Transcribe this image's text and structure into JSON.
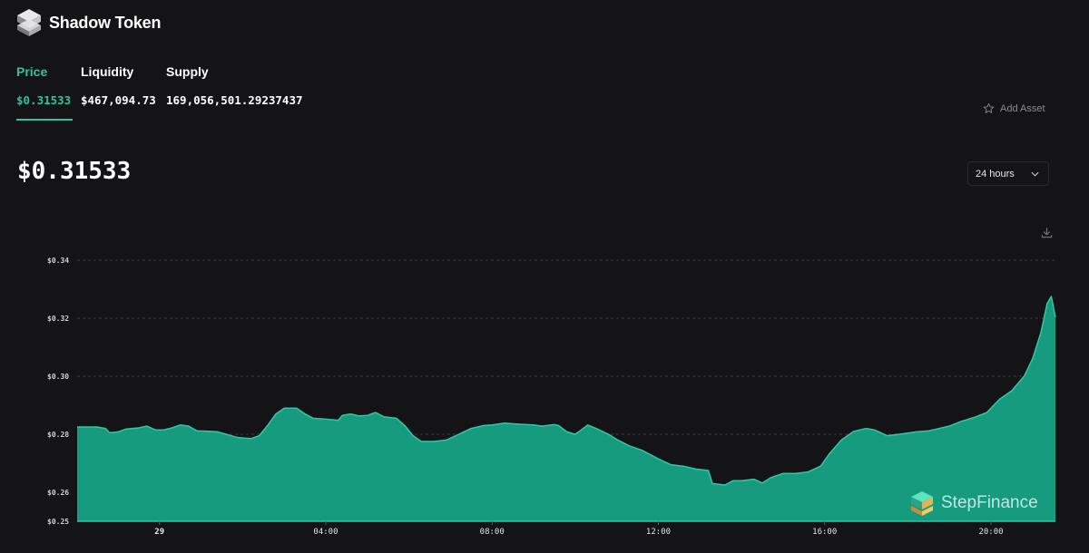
{
  "app": {
    "title": "Shadow Token"
  },
  "tabs": [
    {
      "label": "Price",
      "value": "$0.31533",
      "active": true
    },
    {
      "label": "Liquidity",
      "value": "$467,094.73",
      "active": false
    },
    {
      "label": "Supply",
      "value": "169,056,501.29237437",
      "active": false
    }
  ],
  "add_asset_label": "Add Asset",
  "current_price": "$0.31533",
  "range_select": {
    "selected": "24 hours"
  },
  "watermark": "StepFinance",
  "colors": {
    "accent": "#2ec4a0",
    "area_fill": "#169b7f",
    "background": "#141315"
  },
  "icons": [
    "star-icon",
    "chevron-down-icon",
    "download-icon",
    "shadow-logo-icon",
    "stepfinance-logo-icon"
  ],
  "chart_data": {
    "type": "area",
    "title": "",
    "xlabel": "",
    "ylabel": "",
    "ylim": [
      0.25,
      0.34
    ],
    "y_ticks": [
      {
        "value": 0.25,
        "label": "$0.25"
      },
      {
        "value": 0.26,
        "label": "$0.26"
      },
      {
        "value": 0.28,
        "label": "$0.28"
      },
      {
        "value": 0.3,
        "label": "$0.30"
      },
      {
        "value": 0.32,
        "label": "$0.32"
      },
      {
        "value": 0.34,
        "label": "$0.34"
      }
    ],
    "x_range_hours": [
      -1.98,
      21.55
    ],
    "x_ticks": [
      {
        "hour": 0,
        "label": "29"
      },
      {
        "hour": 4,
        "label": "04:00"
      },
      {
        "hour": 8,
        "label": "08:00"
      },
      {
        "hour": 12,
        "label": "12:00"
      },
      {
        "hour": 16,
        "label": "16:00"
      },
      {
        "hour": 20,
        "label": "20:00"
      }
    ],
    "grid": true,
    "series": [
      {
        "values": [
          [
            -1.98,
            0.2825
          ],
          [
            -1.5,
            0.2825
          ],
          [
            -1.3,
            0.282
          ],
          [
            -1.2,
            0.2805
          ],
          [
            -1.0,
            0.2808
          ],
          [
            -0.8,
            0.2818
          ],
          [
            -0.5,
            0.2822
          ],
          [
            -0.3,
            0.2828
          ],
          [
            -0.1,
            0.2815
          ],
          [
            0.1,
            0.2815
          ],
          [
            0.3,
            0.2822
          ],
          [
            0.5,
            0.2832
          ],
          [
            0.7,
            0.2828
          ],
          [
            0.9,
            0.2812
          ],
          [
            1.2,
            0.281
          ],
          [
            1.4,
            0.2808
          ],
          [
            1.6,
            0.28
          ],
          [
            1.9,
            0.2788
          ],
          [
            2.2,
            0.2785
          ],
          [
            2.4,
            0.2795
          ],
          [
            2.6,
            0.283
          ],
          [
            2.8,
            0.287
          ],
          [
            3.0,
            0.289
          ],
          [
            3.3,
            0.289
          ],
          [
            3.5,
            0.287
          ],
          [
            3.7,
            0.2855
          ],
          [
            4.0,
            0.2852
          ],
          [
            4.3,
            0.2848
          ],
          [
            4.4,
            0.2865
          ],
          [
            4.6,
            0.287
          ],
          [
            4.8,
            0.2863
          ],
          [
            5.0,
            0.2865
          ],
          [
            5.2,
            0.2875
          ],
          [
            5.4,
            0.286
          ],
          [
            5.7,
            0.2855
          ],
          [
            5.9,
            0.283
          ],
          [
            6.1,
            0.2795
          ],
          [
            6.3,
            0.2775
          ],
          [
            6.6,
            0.2775
          ],
          [
            6.9,
            0.278
          ],
          [
            7.2,
            0.28
          ],
          [
            7.5,
            0.282
          ],
          [
            7.8,
            0.283
          ],
          [
            8.0,
            0.2832
          ],
          [
            8.3,
            0.2838
          ],
          [
            8.6,
            0.2835
          ],
          [
            9.0,
            0.2832
          ],
          [
            9.2,
            0.2828
          ],
          [
            9.5,
            0.2833
          ],
          [
            9.6,
            0.283
          ],
          [
            9.8,
            0.2808
          ],
          [
            10.0,
            0.28
          ],
          [
            10.1,
            0.281
          ],
          [
            10.3,
            0.2832
          ],
          [
            10.5,
            0.282
          ],
          [
            10.8,
            0.28
          ],
          [
            11.0,
            0.2782
          ],
          [
            11.3,
            0.276
          ],
          [
            11.6,
            0.2745
          ],
          [
            12.0,
            0.2715
          ],
          [
            12.3,
            0.2695
          ],
          [
            12.6,
            0.269
          ],
          [
            12.9,
            0.268
          ],
          [
            13.2,
            0.2675
          ],
          [
            13.3,
            0.263
          ],
          [
            13.6,
            0.2625
          ],
          [
            13.8,
            0.264
          ],
          [
            14.0,
            0.264
          ],
          [
            14.3,
            0.2645
          ],
          [
            14.5,
            0.2632
          ],
          [
            14.7,
            0.265
          ],
          [
            15.0,
            0.2665
          ],
          [
            15.3,
            0.2665
          ],
          [
            15.6,
            0.267
          ],
          [
            15.9,
            0.269
          ],
          [
            16.1,
            0.273
          ],
          [
            16.4,
            0.278
          ],
          [
            16.7,
            0.281
          ],
          [
            17.0,
            0.282
          ],
          [
            17.2,
            0.2815
          ],
          [
            17.5,
            0.2795
          ],
          [
            17.8,
            0.28
          ],
          [
            18.2,
            0.2808
          ],
          [
            18.5,
            0.2812
          ],
          [
            18.7,
            0.2818
          ],
          [
            19.0,
            0.2828
          ],
          [
            19.3,
            0.2845
          ],
          [
            19.6,
            0.2858
          ],
          [
            19.9,
            0.2875
          ],
          [
            20.2,
            0.292
          ],
          [
            20.5,
            0.295
          ],
          [
            20.8,
            0.3
          ],
          [
            21.0,
            0.306
          ],
          [
            21.2,
            0.315
          ],
          [
            21.35,
            0.325
          ],
          [
            21.45,
            0.3275
          ],
          [
            21.55,
            0.3203
          ]
        ]
      }
    ]
  }
}
